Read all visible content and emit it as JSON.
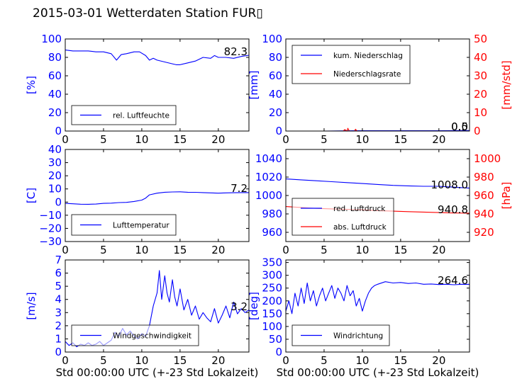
{
  "page": {
    "title": "2015-03-01 Wetterdaten Station FUR▯"
  },
  "colors": {
    "blue": "#0000ff",
    "red": "#ff0000",
    "lightblue": "#8080ff"
  },
  "chart_data": [
    {
      "id": "humidity",
      "type": "line",
      "ylabel": "[%]",
      "xlabel": "",
      "xlim": [
        0,
        24
      ],
      "ylim": [
        0,
        100
      ],
      "x_ticks": [
        "0",
        "5",
        "10",
        "15",
        "20"
      ],
      "y_ticks": [
        "0",
        "20",
        "40",
        "60",
        "80",
        "100"
      ],
      "last_value_label": "82.3",
      "legend": [
        "rel. Luftfeuchte"
      ],
      "series": [
        {
          "name": "rel. Luftfeuchte",
          "color": "#0000ff",
          "x": [
            0,
            1,
            2,
            3,
            4,
            5,
            6,
            6.7,
            7.3,
            8,
            9,
            9.7,
            10.5,
            11,
            11.5,
            12,
            13,
            14,
            14.5,
            15,
            16,
            17,
            18,
            19,
            19.5,
            20,
            21,
            22,
            23,
            24
          ],
          "y": [
            88,
            87,
            87,
            87,
            86,
            86,
            84,
            77,
            83,
            84,
            86,
            86,
            82,
            77,
            79,
            77,
            75,
            73,
            72,
            72,
            74,
            76,
            80,
            79,
            82,
            80,
            80,
            79,
            81,
            82.3
          ]
        }
      ]
    },
    {
      "id": "precipitation",
      "type": "line",
      "ylabel": "[mm]",
      "ylabel_right": "[mm/std]",
      "xlabel": "",
      "xlim": [
        0,
        24
      ],
      "ylim": [
        0,
        100
      ],
      "ylim_right": [
        0,
        50
      ],
      "x_ticks": [
        "0",
        "5",
        "10",
        "15",
        "20"
      ],
      "y_ticks": [
        "0",
        "20",
        "40",
        "60",
        "80",
        "100"
      ],
      "y_ticks_right": [
        "0",
        "10",
        "20",
        "30",
        "40",
        "50"
      ],
      "last_value_label_1": "0.0",
      "last_value_label_2": "0.5",
      "legend": [
        "kum. Niederschlag",
        "Niederschlagsrate"
      ],
      "series": [
        {
          "name": "kum. Niederschlag",
          "color": "#0000ff",
          "axis": "left",
          "x": [
            0,
            5,
            8,
            9,
            12,
            16,
            20,
            24
          ],
          "y": [
            0,
            0,
            0.2,
            0.3,
            0.4,
            0.4,
            0.4,
            0.5
          ]
        },
        {
          "name": "Niederschlagsrate",
          "color": "#ff0000",
          "axis": "right",
          "x": [
            0,
            5,
            7.5,
            7.7,
            8.0,
            8.1,
            8.3,
            9.0,
            9.1,
            9.3,
            12,
            16,
            20,
            24
          ],
          "y": [
            0,
            0,
            0,
            0.8,
            0,
            1.5,
            0,
            0,
            1.0,
            0,
            0,
            0,
            0,
            0
          ]
        }
      ]
    },
    {
      "id": "temperature",
      "type": "line",
      "ylabel": "[C]",
      "xlabel": "",
      "xlim": [
        0,
        24
      ],
      "ylim": [
        -30,
        40
      ],
      "x_ticks": [
        "0",
        "5",
        "10",
        "15",
        "20"
      ],
      "y_ticks": [
        "−30",
        "−20",
        "−10",
        "0",
        "10",
        "20",
        "30",
        "40"
      ],
      "last_value_label": "7.2",
      "legend": [
        "Lufttemperatur"
      ],
      "series": [
        {
          "name": "Lufttemperatur",
          "color": "#0000ff",
          "x": [
            0,
            1,
            2,
            3,
            4,
            5,
            6,
            7,
            8,
            9,
            10,
            10.5,
            11,
            12,
            13,
            14,
            15,
            16,
            17,
            18,
            19,
            20,
            21,
            22,
            23,
            24
          ],
          "y": [
            -1,
            -1.3,
            -1.6,
            -1.7,
            -1.5,
            -1.0,
            -0.8,
            -0.4,
            -0.2,
            0.5,
            1.5,
            3.0,
            5.5,
            6.8,
            7.5,
            7.7,
            7.8,
            7.5,
            7.4,
            7.2,
            7.0,
            6.8,
            7.0,
            7.1,
            7.2,
            7.2
          ]
        }
      ]
    },
    {
      "id": "pressure",
      "type": "line",
      "ylabel": "",
      "ylabel_right": "[hPa]",
      "xlabel": "",
      "xlim": [
        0,
        24
      ],
      "ylim": [
        950,
        1050
      ],
      "ylim_right": [
        910,
        1010
      ],
      "x_ticks": [
        "0",
        "5",
        "10",
        "15",
        "20"
      ],
      "y_ticks": [
        "960",
        "980",
        "1000",
        "1020",
        "1040"
      ],
      "y_ticks_right": [
        "920",
        "940",
        "960",
        "980",
        "1000"
      ],
      "last_value_label_1": "1008.0",
      "last_value_label_2": "940.8",
      "legend": [
        "red. Luftdruck",
        "abs. Luftdruck"
      ],
      "series": [
        {
          "name": "red. Luftdruck",
          "color": "#0000ff",
          "axis": "left",
          "x": [
            0,
            2,
            4,
            6,
            8,
            10,
            12,
            14,
            16,
            18,
            20,
            22,
            24
          ],
          "y": [
            1018,
            1017,
            1016,
            1015,
            1014,
            1013,
            1012,
            1011,
            1010.5,
            1010,
            1010,
            1009,
            1008
          ]
        },
        {
          "name": "abs. Luftdruck",
          "color": "#ff0000",
          "axis": "right",
          "x": [
            0,
            2,
            4,
            6,
            8,
            10,
            12,
            14,
            16,
            18,
            20,
            22,
            24
          ],
          "y": [
            948,
            947,
            946,
            945.5,
            945,
            944.5,
            943.5,
            943,
            942.5,
            942,
            941.5,
            941,
            940.8
          ]
        }
      ]
    },
    {
      "id": "windspeed",
      "type": "line",
      "ylabel": "[m/s]",
      "xlabel": "Std 00:00:00 UTC (+-23 Std Lokalzeit)",
      "xlim": [
        0,
        24
      ],
      "ylim": [
        0,
        7
      ],
      "x_ticks": [
        "0",
        "5",
        "10",
        "15",
        "20"
      ],
      "y_ticks": [
        "0",
        "1",
        "2",
        "3",
        "4",
        "5",
        "6",
        "7"
      ],
      "last_value_label": "3.2",
      "legend": [
        "Windgeschwindigkeit"
      ],
      "series": [
        {
          "name": "Windgeschwindigkeit",
          "color": "#0000ff",
          "x": [
            0,
            0.5,
            1,
            1.5,
            2,
            2.5,
            3,
            3.5,
            4,
            4.5,
            5,
            5.5,
            6,
            6.5,
            7,
            7.5,
            8,
            8.5,
            9,
            9.5,
            10,
            10.5,
            11,
            11.5,
            12,
            12.3,
            12.6,
            13,
            13.3,
            13.6,
            14,
            14.3,
            14.6,
            15,
            15.5,
            16,
            16.5,
            17,
            17.5,
            18,
            18.5,
            19,
            19.5,
            20,
            20.5,
            21,
            21.5,
            22,
            22.5,
            23,
            23.5,
            24
          ],
          "y": [
            0.8,
            0.5,
            0.7,
            0.4,
            0.6,
            0.5,
            0.7,
            0.5,
            0.6,
            0.8,
            0.5,
            0.7,
            0.9,
            1.5,
            1.2,
            1.8,
            1.3,
            1.6,
            1.2,
            1.0,
            1.4,
            1.2,
            2.0,
            3.5,
            4.5,
            6.2,
            4.0,
            5.8,
            4.5,
            3.8,
            5.5,
            4.2,
            3.5,
            4.8,
            3.2,
            4.0,
            2.8,
            3.5,
            2.5,
            3.0,
            2.6,
            2.3,
            3.3,
            2.2,
            2.8,
            3.5,
            2.6,
            3.8,
            2.9,
            3.3,
            3.0,
            3.2
          ]
        }
      ]
    },
    {
      "id": "winddirection",
      "type": "line",
      "ylabel": "[deg]",
      "xlabel": "Std 00:00:00 UTC (+-23 Std Lokalzeit)",
      "xlim": [
        0,
        24
      ],
      "ylim": [
        0,
        360
      ],
      "x_ticks": [
        "0",
        "5",
        "10",
        "15",
        "20"
      ],
      "y_ticks": [
        "0",
        "50",
        "100",
        "150",
        "200",
        "250",
        "300",
        "350"
      ],
      "last_value_label": "264.6",
      "legend": [
        "Windrichtung"
      ],
      "series": [
        {
          "name": "Windrichtung",
          "color": "#0000ff",
          "x": [
            0,
            0.4,
            0.8,
            1.2,
            1.6,
            2.0,
            2.4,
            2.8,
            3.2,
            3.6,
            4.0,
            4.4,
            4.8,
            5.2,
            5.6,
            6.0,
            6.4,
            6.8,
            7.2,
            7.6,
            8.0,
            8.4,
            8.8,
            9.2,
            9.6,
            10.0,
            10.4,
            10.8,
            11.2,
            11.6,
            12.0,
            13,
            14,
            15,
            16,
            17,
            18,
            19,
            20,
            21,
            22,
            23,
            24
          ],
          "y": [
            160,
            200,
            150,
            230,
            180,
            250,
            190,
            270,
            200,
            240,
            180,
            220,
            250,
            200,
            230,
            260,
            210,
            250,
            230,
            200,
            260,
            220,
            240,
            180,
            210,
            160,
            200,
            230,
            250,
            260,
            265,
            275,
            270,
            272,
            268,
            270,
            265,
            266,
            264,
            265,
            263,
            265,
            264.6
          ]
        }
      ]
    }
  ]
}
